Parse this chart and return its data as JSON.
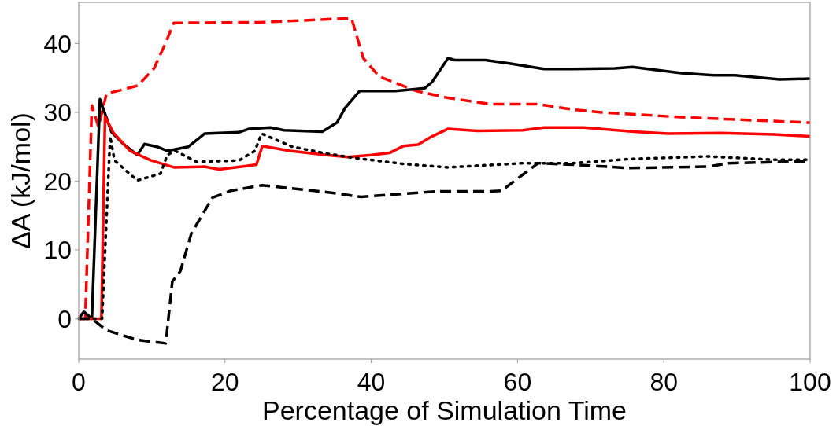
{
  "chart_data": {
    "type": "line",
    "xlabel": "Percentage of Simulation Time",
    "ylabel": "ΔA (kJ/mol)",
    "xlim": [
      0,
      100
    ],
    "ylim": [
      -5.9,
      46
    ],
    "xticks": [
      0,
      20,
      40,
      60,
      80,
      100
    ],
    "yticks": [
      0,
      10,
      20,
      30,
      40
    ],
    "grid": false,
    "marker": "none",
    "series": [
      {
        "color": "#ff0000",
        "line_style": "dashed",
        "x": [
          0,
          0.9,
          1.8,
          2.7,
          3.8,
          8.1,
          10.3,
          11.8,
          13.0,
          25,
          37.3,
          38.9,
          41.1,
          46.2,
          50.5,
          56.3,
          62.8,
          67.6,
          71.5,
          82.4,
          100
        ],
        "values": [
          0,
          0,
          31,
          27.9,
          32.7,
          33.9,
          36.4,
          39.9,
          43.0,
          43.1,
          43.7,
          37.9,
          35.2,
          33.1,
          32.1,
          31.2,
          31.2,
          30.4,
          30.0,
          29.3,
          28.5
        ]
      },
      {
        "color": "#000000",
        "line_style": "solid",
        "x": [
          0,
          0.7,
          1.8,
          2.9,
          4.5,
          6.0,
          8.0,
          9.0,
          10.7,
          12.1,
          15.0,
          17.2,
          21.9,
          23.3,
          26.2,
          28.1,
          33.3,
          35.3,
          36.4,
          38.4,
          43.3,
          47.3,
          48.3,
          50.5,
          51.4,
          55.6,
          58.9,
          63.6,
          67.6,
          73.3,
          75.7,
          82.4,
          86.8,
          89.7,
          95.8,
          100
        ],
        "values": [
          0,
          1,
          0,
          31.9,
          27.1,
          25.5,
          23.8,
          25.4,
          25.0,
          24.4,
          25.0,
          26.9,
          27.1,
          27.6,
          27.8,
          27.4,
          27.2,
          28.5,
          30.6,
          33.1,
          33.1,
          33.5,
          34.4,
          37.9,
          37.6,
          37.6,
          37.1,
          36.3,
          36.3,
          36.4,
          36.6,
          35.7,
          35.4,
          35.4,
          34.8,
          34.9
        ]
      },
      {
        "color": "#ff0000",
        "line_style": "solid",
        "x": [
          0,
          3.1,
          3.6,
          4.7,
          7.0,
          9.9,
          13.0,
          17.2,
          19.2,
          22.3,
          24.3,
          25.1,
          28.9,
          33.9,
          36.8,
          40.0,
          42.5,
          44.4,
          46.4,
          48.3,
          50.5,
          54.5,
          60.7,
          63.6,
          69.0,
          75.9,
          80.6,
          87.8,
          95.1,
          100
        ],
        "values": [
          0,
          0,
          29.4,
          27.1,
          24.4,
          23.0,
          22.0,
          22.1,
          21.7,
          22.1,
          22.4,
          25.1,
          24.4,
          23.8,
          23.5,
          23.8,
          24.1,
          25.1,
          25.3,
          26.5,
          27.6,
          27.3,
          27.4,
          27.8,
          27.8,
          27.2,
          26.9,
          27.0,
          26.8,
          26.5
        ]
      },
      {
        "color": "#000000",
        "line_style": "dotted",
        "x": [
          0,
          3.2,
          4.3,
          4.9,
          8.0,
          11.2,
          12.1,
          13.2,
          16.1,
          21.9,
          24.1,
          25.0,
          29.2,
          33.9,
          37.5,
          44.4,
          50.5,
          60.7,
          67.6,
          75.2,
          86.0,
          95.1,
          100
        ],
        "values": [
          0,
          0,
          26.5,
          23.0,
          20.1,
          21.1,
          23.8,
          24.4,
          22.8,
          23.0,
          24.4,
          26.9,
          25.0,
          24.0,
          23.4,
          22.5,
          22.0,
          22.6,
          22.6,
          23.2,
          23.6,
          23.1,
          23.1
        ]
      },
      {
        "color": "#000000",
        "line_style": "dashed",
        "x": [
          0,
          1.8,
          3.8,
          8.0,
          11.9,
          12.8,
          13.9,
          15.4,
          18.3,
          20.8,
          25.1,
          33.9,
          38.6,
          42.2,
          49.1,
          56.3,
          57.8,
          62.8,
          67.6,
          75.2,
          86.0,
          88.9,
          100
        ],
        "values": [
          0,
          0,
          -1.7,
          -3.1,
          -3.6,
          5.4,
          6.9,
          12.4,
          17.6,
          18.6,
          19.4,
          18.4,
          17.7,
          18.0,
          18.5,
          18.5,
          18.6,
          22.6,
          22.4,
          21.9,
          22.1,
          22.6,
          22.9
        ]
      }
    ]
  }
}
